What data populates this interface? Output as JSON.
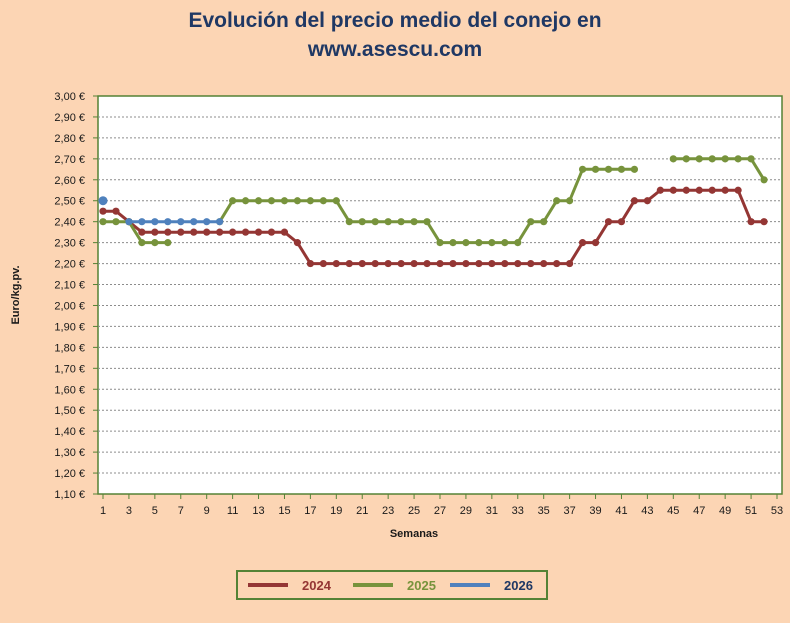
{
  "chart_data": {
    "type": "line",
    "title_lines": [
      "Evolución del precio medio del conejo en",
      "www.asescu.com"
    ],
    "xlabel": "Semanas",
    "ylabel": "Euro/kg.pv.",
    "ylim": [
      1.1,
      3.0
    ],
    "yticks": [
      "1,10 €",
      "1,20 €",
      "1,30 €",
      "1,40 €",
      "1,50 €",
      "1,60 €",
      "1,70 €",
      "1,80 €",
      "1,90 €",
      "2,00 €",
      "2,10 €",
      "2,20 €",
      "2,30 €",
      "2,40 €",
      "2,50 €",
      "2,60 €",
      "2,70 €",
      "2,80 €",
      "2,90 €",
      "3,00 €"
    ],
    "xlim": [
      1,
      53
    ],
    "xticks": [
      "1",
      "3",
      "5",
      "7",
      "9",
      "11",
      "13",
      "15",
      "17",
      "19",
      "21",
      "23",
      "25",
      "27",
      "29",
      "31",
      "33",
      "35",
      "37",
      "39",
      "41",
      "43",
      "45",
      "47",
      "49",
      "51",
      "53"
    ],
    "grid": true,
    "legend_position": "bottom",
    "series": [
      {
        "name": "2024",
        "color": "#943634",
        "values": [
          2.45,
          2.45,
          2.4,
          2.35,
          2.35,
          2.35,
          2.35,
          2.35,
          2.35,
          2.35,
          2.35,
          2.35,
          2.35,
          2.35,
          2.35,
          2.3,
          2.2,
          2.2,
          2.2,
          2.2,
          2.2,
          2.2,
          2.2,
          2.2,
          2.2,
          2.2,
          2.2,
          2.2,
          2.2,
          2.2,
          2.2,
          2.2,
          2.2,
          2.2,
          2.2,
          2.2,
          2.2,
          2.3,
          2.3,
          2.4,
          2.4,
          2.5,
          2.5,
          2.55,
          2.55,
          2.55,
          2.55,
          2.55,
          2.55,
          2.55,
          2.4,
          2.4
        ]
      },
      {
        "name": "2025",
        "color": "#77933c",
        "values": [
          2.4,
          2.4,
          2.4,
          2.3,
          2.3,
          2.3,
          null,
          null,
          null,
          2.4,
          2.5,
          2.5,
          2.5,
          2.5,
          2.5,
          2.5,
          2.5,
          2.5,
          2.5,
          2.4,
          2.4,
          2.4,
          2.4,
          2.4,
          2.4,
          2.4,
          2.3,
          2.3,
          2.3,
          2.3,
          2.3,
          2.3,
          2.3,
          2.4,
          2.4,
          2.5,
          2.5,
          2.65,
          2.65,
          2.65,
          2.65,
          2.65,
          null,
          null,
          2.7,
          2.7,
          2.7,
          2.7,
          2.7,
          2.7,
          2.7,
          2.6
        ]
      },
      {
        "name": "2026",
        "color": "#4f81bd",
        "values": [
          2.5,
          null,
          2.4,
          2.4,
          2.4,
          2.4,
          2.4,
          2.4,
          2.4,
          2.4
        ]
      }
    ]
  }
}
